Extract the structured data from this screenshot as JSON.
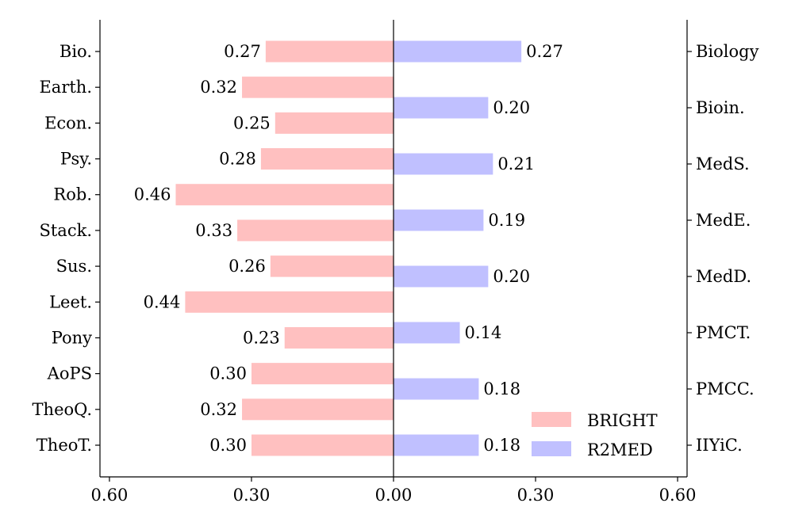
{
  "chart_data": {
    "type": "bar",
    "orientation": "diverging-horizontal",
    "x_ticks": [
      "0.60",
      "0.30",
      "0.00",
      "0.30",
      "0.60"
    ],
    "xlim": [
      -0.62,
      0.62
    ],
    "series": [
      {
        "name": "BRIGHT",
        "color": "#ffc0c0",
        "side": "left",
        "categories": [
          "Bio.",
          "Earth.",
          "Econ.",
          "Psy.",
          "Rob.",
          "Stack.",
          "Sus.",
          "Leet.",
          "Pony",
          "AoPS",
          "TheoQ.",
          "TheoT."
        ],
        "values": [
          0.27,
          0.32,
          0.25,
          0.28,
          0.46,
          0.33,
          0.26,
          0.44,
          0.23,
          0.3,
          0.32,
          0.3
        ],
        "labels": [
          "0.27",
          "0.32",
          "0.25",
          "0.28",
          "0.46",
          "0.33",
          "0.26",
          "0.44",
          "0.23",
          "0.30",
          "0.32",
          "0.30"
        ]
      },
      {
        "name": "R2MED",
        "color": "#c0c0ff",
        "side": "right",
        "categories": [
          "Biology",
          "Bioin.",
          "MedS.",
          "MedE.",
          "MedD.",
          "PMCT.",
          "PMCC.",
          "IIYiC."
        ],
        "values": [
          0.27,
          0.2,
          0.21,
          0.19,
          0.2,
          0.14,
          0.18,
          0.18
        ],
        "labels": [
          "0.27",
          "0.20",
          "0.21",
          "0.19",
          "0.20",
          "0.14",
          "0.18",
          "0.18"
        ]
      }
    ],
    "legend": {
      "position": "bottom-right",
      "entries": [
        {
          "label": "BRIGHT",
          "color": "#ffc0c0"
        },
        {
          "label": "R2MED",
          "color": "#c0c0ff"
        }
      ]
    },
    "grid": false
  }
}
